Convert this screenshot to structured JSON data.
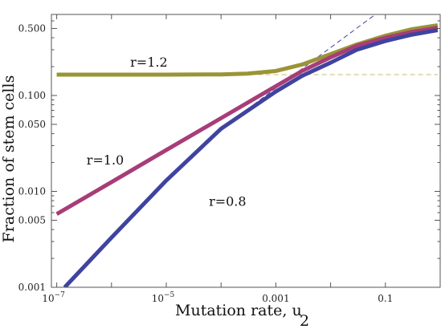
{
  "chart_data": {
    "type": "line",
    "title": "",
    "xlabel": "Mutation rate, u",
    "xlabel_subscript": "2",
    "ylabel": "Fraction of stem cells",
    "xscale": "log",
    "yscale": "log",
    "xlim": [
      8e-08,
      1.0
    ],
    "ylim": [
      0.001,
      0.7
    ],
    "x_ticks": [
      {
        "value": 1e-07,
        "base": "10",
        "exp": "−7"
      },
      {
        "value": 1e-05,
        "base": "10",
        "exp": "−5"
      },
      {
        "value": 0.001,
        "text": "0.001"
      },
      {
        "value": 0.1,
        "text": "0.1"
      }
    ],
    "y_ticks": [
      {
        "value": 0.001,
        "text": "0.001"
      },
      {
        "value": 0.005,
        "text": "0.005"
      },
      {
        "value": 0.01,
        "text": "0.010"
      },
      {
        "value": 0.05,
        "text": "0.050"
      },
      {
        "value": 0.1,
        "text": "0.100"
      },
      {
        "value": 0.5,
        "text": "0.500"
      }
    ],
    "series": [
      {
        "name": "r=1.2",
        "color": "#9a9437",
        "x": [
          1e-07,
          1e-06,
          1e-05,
          0.0001,
          0.0003,
          0.001,
          0.003,
          0.01,
          0.03,
          0.1,
          0.3,
          0.9
        ],
        "y": [
          0.165,
          0.165,
          0.165,
          0.166,
          0.169,
          0.18,
          0.21,
          0.27,
          0.34,
          0.42,
          0.49,
          0.54
        ]
      },
      {
        "name": "r=1.0",
        "color": "#a73d78",
        "x": [
          1e-07,
          1e-06,
          1e-05,
          0.0001,
          0.001,
          0.003,
          0.01,
          0.03,
          0.1,
          0.3,
          0.9
        ],
        "y": [
          0.0058,
          0.0125,
          0.027,
          0.058,
          0.125,
          0.18,
          0.25,
          0.33,
          0.4,
          0.46,
          0.51
        ]
      },
      {
        "name": "r=0.8",
        "color": "#3f43a0",
        "x": [
          1.4e-07,
          1e-06,
          1e-05,
          0.0001,
          0.001,
          0.003,
          0.01,
          0.03,
          0.1,
          0.3,
          0.9
        ],
        "y": [
          0.001,
          0.0033,
          0.013,
          0.045,
          0.11,
          0.16,
          0.22,
          0.3,
          0.37,
          0.43,
          0.48
        ]
      }
    ],
    "reference_lines": [
      {
        "style": "dashed",
        "color": "#c9b870",
        "x": [
          1e-07,
          0.9
        ],
        "y": [
          0.165,
          0.165
        ]
      },
      {
        "style": "dashed",
        "color": "#3f43a0",
        "x": [
          0.0001,
          0.07
        ],
        "y": [
          0.045,
          0.72
        ]
      }
    ],
    "annotations": [
      {
        "text": "r=1.2",
        "x": 2.2e-06,
        "y": 0.2
      },
      {
        "text": "r=1.0",
        "x": 3.5e-07,
        "y": 0.019
      },
      {
        "text": "r=0.8",
        "x": 6e-05,
        "y": 0.0071
      }
    ],
    "legend": "none",
    "grid": false
  }
}
